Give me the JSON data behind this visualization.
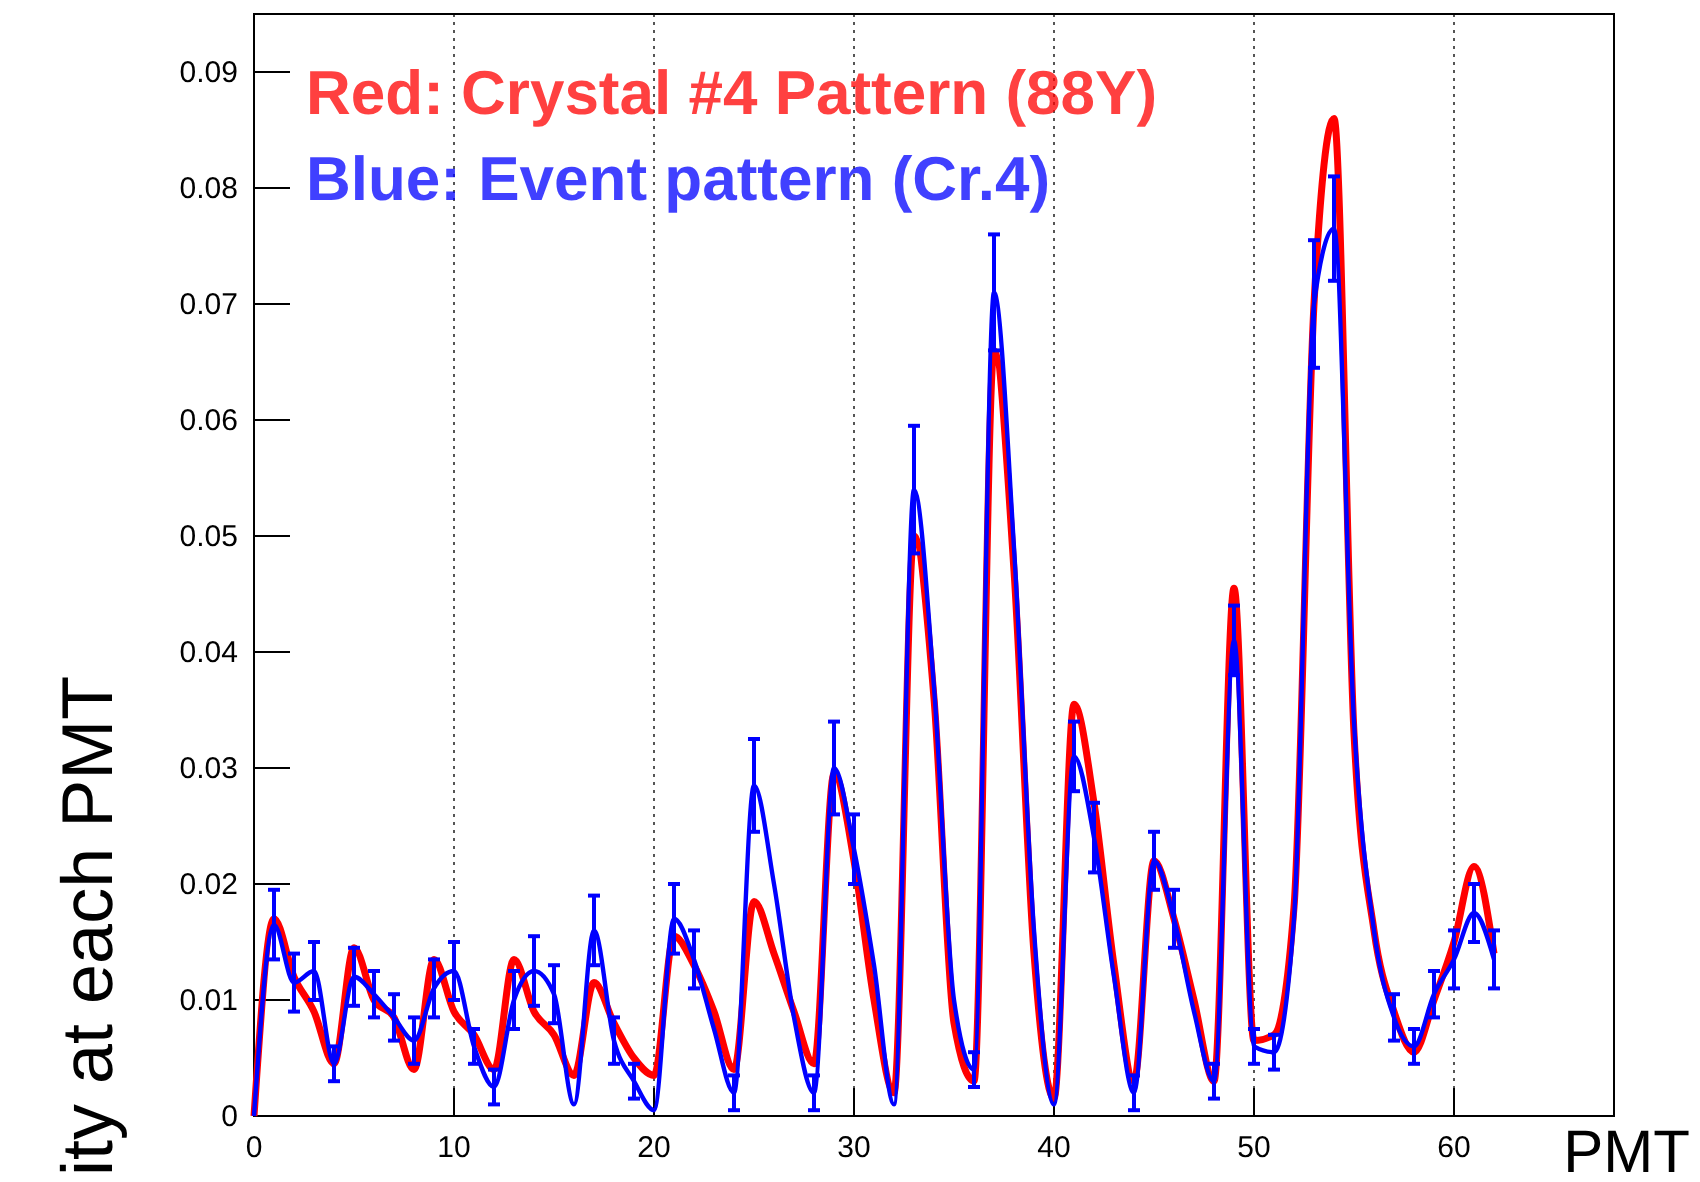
{
  "chart_data": {
    "type": "line",
    "xlabel": "PMT",
    "ylabel": "ity at each PMT",
    "x": [
      0,
      1,
      2,
      3,
      4,
      5,
      6,
      7,
      8,
      9,
      10,
      11,
      12,
      13,
      14,
      15,
      16,
      17,
      18,
      19,
      20,
      21,
      22,
      23,
      24,
      25,
      26,
      27,
      28,
      29,
      30,
      31,
      32,
      33,
      34,
      35,
      36,
      37,
      38,
      39,
      40,
      41,
      42,
      43,
      44,
      45,
      46,
      47,
      48,
      49,
      50,
      51,
      52,
      53,
      54,
      55,
      56,
      57,
      58,
      59,
      60,
      61,
      62
    ],
    "series": [
      {
        "name": "Red: Crystal #4 Pattern (88Y)",
        "color": "#ff0000",
        "values": [
          0,
          0.017,
          0.012,
          0.009,
          0.0045,
          0.0145,
          0.01,
          0.0085,
          0.004,
          0.0135,
          0.009,
          0.007,
          0.004,
          0.0135,
          0.009,
          0.007,
          0.0035,
          0.0115,
          0.008,
          0.005,
          0.0035,
          0.0155,
          0.013,
          0.009,
          0.004,
          0.0185,
          0.014,
          0.009,
          0.0045,
          0.0295,
          0.022,
          0.01,
          0.002,
          0.05,
          0.036,
          0.008,
          0.003,
          0.066,
          0.047,
          0.014,
          0.0015,
          0.0355,
          0.027,
          0.013,
          0.003,
          0.022,
          0.017,
          0.01,
          0.003,
          0.0455,
          0.0065,
          0.007,
          0.018,
          0.07,
          0.086,
          0.033,
          0.016,
          0.009,
          0.0055,
          0.01,
          0.015,
          0.0215,
          0.014
        ]
      },
      {
        "name": "Blue: Event pattern (Cr.4)",
        "color": "#0000ff",
        "values": [
          0,
          0.0165,
          0.0115,
          0.0125,
          0.0045,
          0.012,
          0.0105,
          0.0085,
          0.0065,
          0.011,
          0.0125,
          0.006,
          0.0025,
          0.01,
          0.0125,
          0.0105,
          0.001,
          0.016,
          0.0065,
          0.003,
          0.0005,
          0.017,
          0.0135,
          0.0075,
          0.002,
          0.0285,
          0.02,
          0.0085,
          0.002,
          0.03,
          0.023,
          0.013,
          0.001,
          0.054,
          0.037,
          0.01,
          0.004,
          0.071,
          0.049,
          0.016,
          0.001,
          0.031,
          0.024,
          0.012,
          0.002,
          0.022,
          0.017,
          0.009,
          0.003,
          0.041,
          0.006,
          0.0055,
          0.017,
          0.07,
          0.0765,
          0.034,
          0.016,
          0.0085,
          0.006,
          0.0105,
          0.0135,
          0.0175,
          0.0135
        ],
        "errors": [
          null,
          0.003,
          0.0025,
          0.0025,
          0.0015,
          0.0025,
          0.002,
          0.002,
          0.002,
          0.0025,
          0.0025,
          0.0015,
          0.0015,
          0.0025,
          0.003,
          0.0025,
          null,
          0.003,
          0.002,
          0.0015,
          null,
          0.003,
          0.0025,
          null,
          0.0015,
          0.004,
          null,
          null,
          0.0015,
          0.004,
          0.003,
          null,
          null,
          0.0055,
          null,
          null,
          0.0015,
          0.005,
          null,
          null,
          null,
          0.003,
          0.003,
          null,
          0.0015,
          0.0025,
          0.0025,
          null,
          0.0015,
          0.003,
          0.0015,
          0.0015,
          null,
          0.0055,
          0.0045,
          null,
          null,
          0.002,
          0.0015,
          0.002,
          0.0025,
          0.0025,
          0.0025
        ]
      }
    ],
    "xlim": [
      0,
      68
    ],
    "xticks": [
      0,
      10,
      20,
      30,
      40,
      50,
      60
    ],
    "ylim": [
      0,
      0.095
    ],
    "yticks": [
      0,
      0.01,
      0.02,
      0.03,
      0.04,
      0.05,
      0.06,
      0.07,
      0.08,
      0.09
    ],
    "grid": "x",
    "legend": "top left",
    "marker": "none",
    "line_style": "solid"
  }
}
